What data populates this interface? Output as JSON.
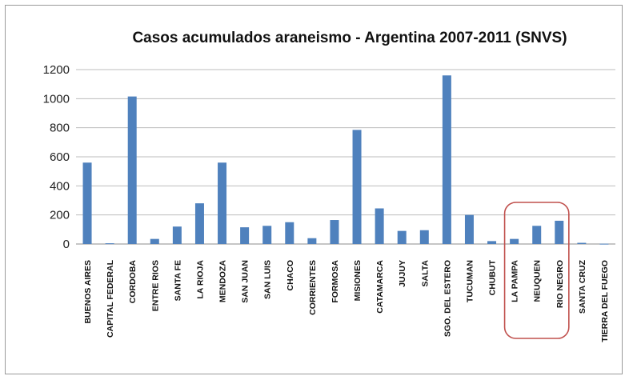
{
  "chart_data": {
    "type": "bar",
    "title": "Casos acumulados araneismo - Argentina 2007-2011  (SNVS)",
    "xlabel": "",
    "ylabel": "",
    "ylim": [
      0,
      1200
    ],
    "yticks": [
      0,
      200,
      400,
      600,
      800,
      1000,
      1200
    ],
    "grid": true,
    "legend": "none",
    "bar_color": "#4F81BD",
    "highlight_color": "#C0504D",
    "highlighted_categories": [
      "LA PAMPA",
      "NEUQUEN",
      "RIO NEGRO"
    ],
    "categories": [
      "BUENOS AIRES",
      "CAPITAL FEDERAL",
      "CORDOBA",
      "ENTRE RIOS",
      "SANTA FE",
      "LA RIOJA",
      "MENDOZA",
      "SAN JUAN",
      "SAN LUIS",
      "CHACO",
      "CORRIENTES",
      "FORMOSA",
      "MISIONES",
      "CATAMARCA",
      "JUJUY",
      "SALTA",
      "SGO. DEL ESTERO",
      "TUCUMAN",
      "CHUBUT",
      "LA PAMPA",
      "NEUQUEN",
      "RIO NEGRO",
      "SANTA CRUZ",
      "TIERRA DEL FUEGO"
    ],
    "values": [
      560,
      5,
      1015,
      35,
      120,
      280,
      560,
      115,
      125,
      150,
      40,
      165,
      785,
      245,
      90,
      95,
      1160,
      200,
      20,
      35,
      125,
      160,
      8,
      2
    ]
  }
}
